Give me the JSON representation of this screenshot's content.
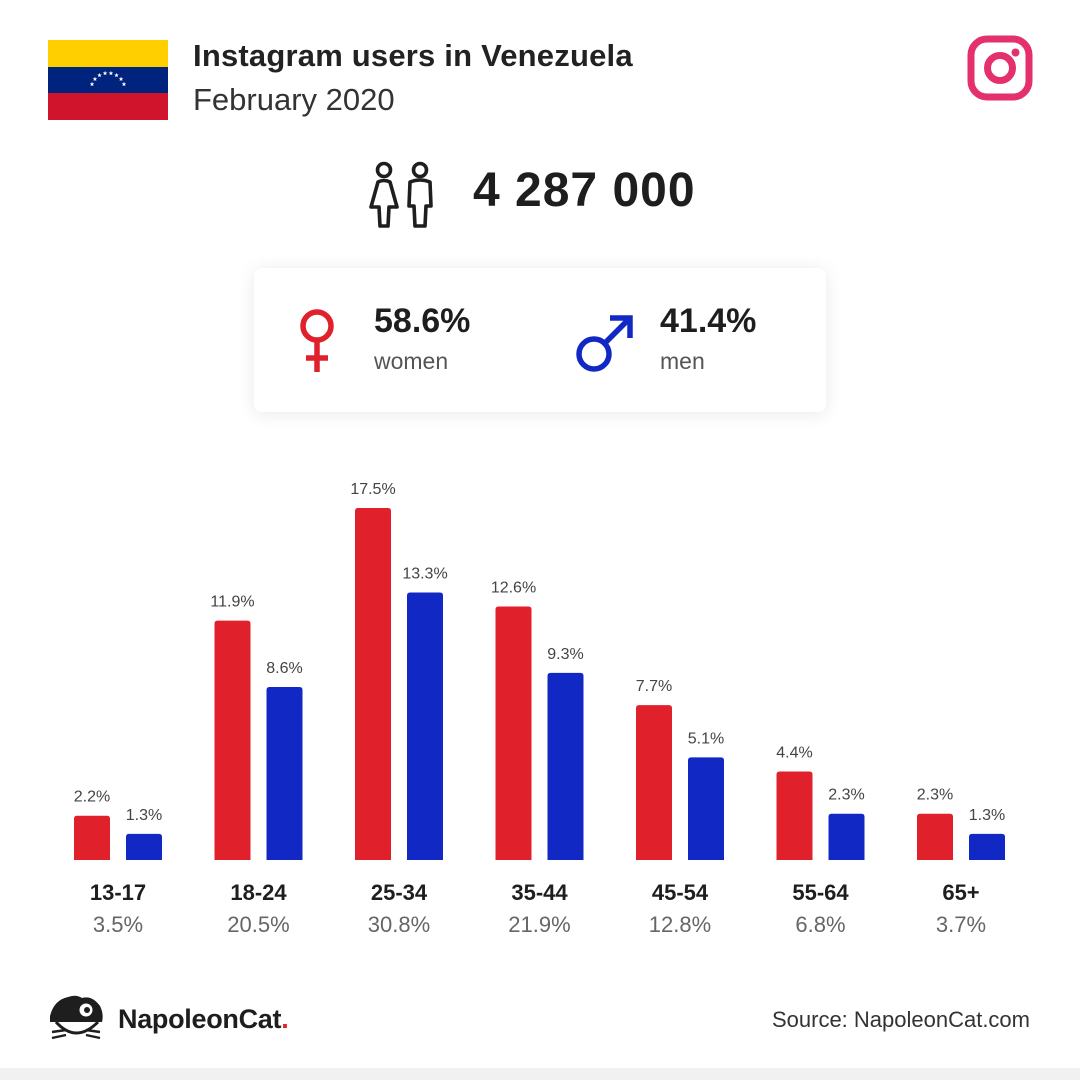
{
  "header": {
    "title": "Instagram users in Venezuela",
    "subtitle": "February 2020",
    "flag_icon": "venezuela-flag",
    "brand_icon": "instagram-icon"
  },
  "total": {
    "icon": "people-icon",
    "value": "4 287 000"
  },
  "gender": {
    "women": {
      "value": "58.6%",
      "label": "women",
      "icon": "female-symbol-icon"
    },
    "men": {
      "value": "41.4%",
      "label": "men",
      "icon": "male-symbol-icon"
    }
  },
  "colors": {
    "women": "#e0202a",
    "men": "#1228c4",
    "instagram": "#e4306c"
  },
  "chart_data": {
    "type": "bar",
    "categories": [
      "13-17",
      "18-24",
      "25-34",
      "35-44",
      "45-54",
      "55-64",
      "65+"
    ],
    "category_totals": [
      "3.5%",
      "20.5%",
      "30.8%",
      "21.9%",
      "12.8%",
      "6.8%",
      "3.7%"
    ],
    "series": [
      {
        "key": "women",
        "values": [
          2.2,
          11.9,
          17.5,
          12.6,
          7.7,
          4.4,
          2.3
        ],
        "color": "#e0202a"
      },
      {
        "key": "men",
        "values": [
          1.3,
          8.6,
          13.3,
          9.3,
          5.1,
          2.3,
          1.3
        ],
        "color": "#1228c4"
      }
    ],
    "value_suffix": "%",
    "ylim": [
      0,
      17.5
    ],
    "grid": false
  },
  "footer": {
    "brand": "NapoleonCat",
    "brand_dot": ".",
    "source": "Source: NapoleonCat.com",
    "logo_icon": "napoleoncat-logo-icon"
  }
}
